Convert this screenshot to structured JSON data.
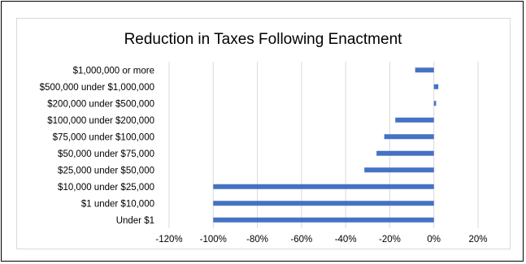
{
  "chart_data": {
    "type": "bar",
    "orientation": "horizontal",
    "title": "Reduction in Taxes Following Enactment",
    "categories": [
      "$1,000,000 or more",
      "$500,000 under $1,000,000",
      "$200,000 under $500,000",
      "$100,000 under $200,000",
      "$75,000 under $100,000",
      "$50,000 under $75,000",
      "$25,000 under $50,000",
      "$10,000 under $25,000",
      "$1 under $10,000",
      "Under $1"
    ],
    "values": [
      -8.5,
      2,
      1,
      -17.5,
      -22.5,
      -26,
      -31.5,
      -100,
      -100,
      -100
    ],
    "xlim": [
      -120,
      20
    ],
    "x_ticks": [
      -120,
      -100,
      -80,
      -60,
      -40,
      -20,
      0,
      20
    ],
    "x_tick_labels": [
      "-120%",
      "-100%",
      "-80%",
      "-60%",
      "-40%",
      "-20%",
      "0%",
      "20%"
    ],
    "xlabel": "",
    "ylabel": "",
    "grid": "vertical",
    "legend": "none",
    "colors": {
      "bar": "#4472c4",
      "grid": "#d9d9d9",
      "label": "#000000"
    }
  }
}
